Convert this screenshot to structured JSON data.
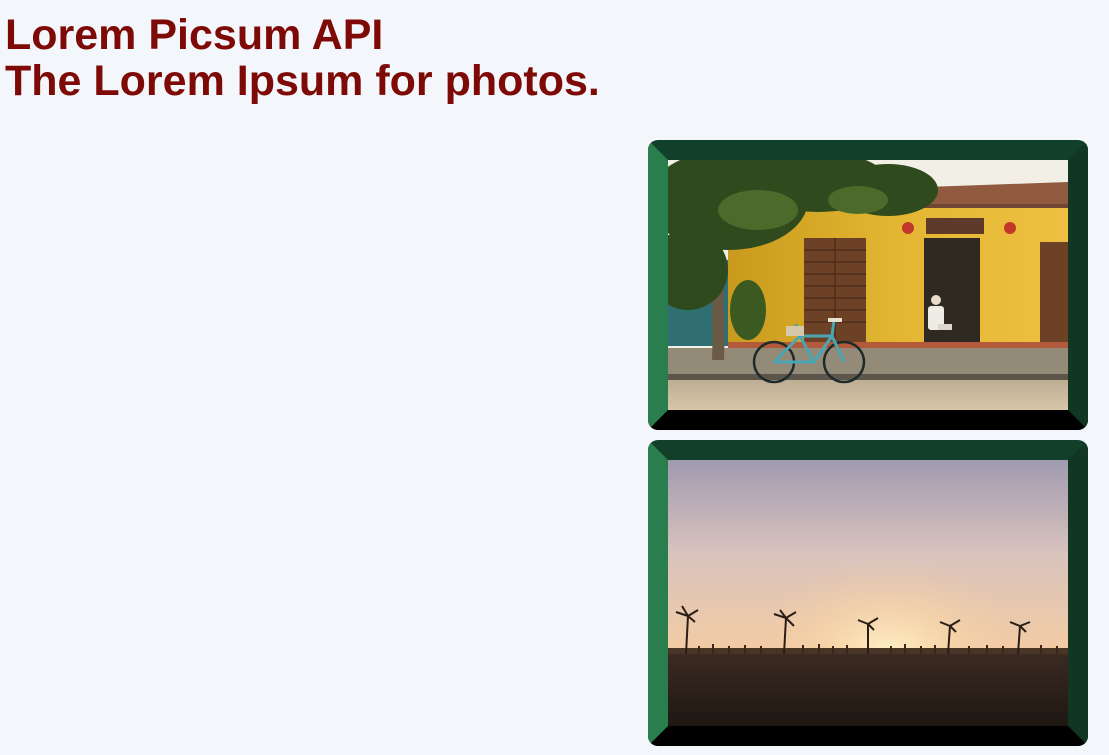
{
  "header": {
    "title": "Lorem Picsum API",
    "subtitle": "The Lorem Ipsum for photos."
  },
  "photos": [
    {
      "subject": "yellow-house-with-bicycle"
    },
    {
      "subject": "sunset-palm-trees"
    }
  ],
  "colors": {
    "background": "#f3f7fc",
    "heading": "#7d0a06",
    "frame_light": "#2d8a55",
    "frame_dark": "#123f29"
  }
}
